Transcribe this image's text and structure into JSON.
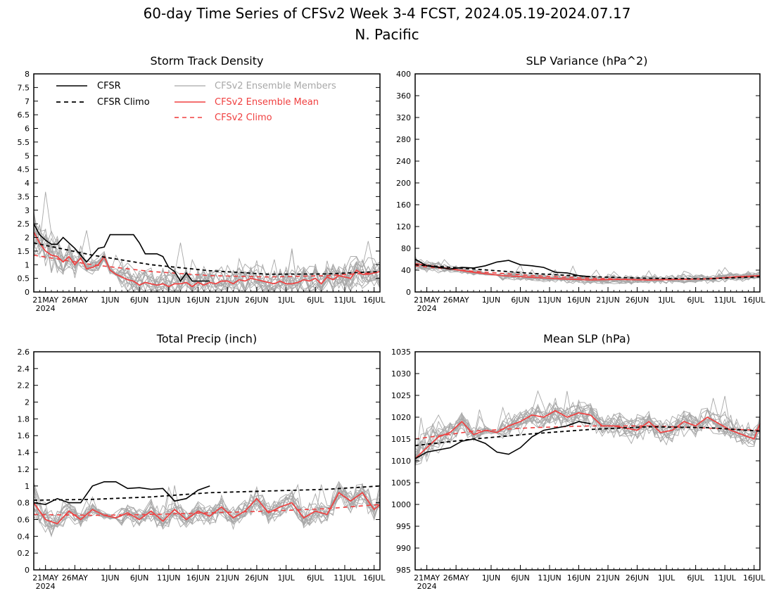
{
  "figure": {
    "title_line1": "60-day Time Series of CFSv2 Week 3-4 FCST, 2024.05.19-2024.07.17",
    "title_line2": "N. Pacific"
  },
  "legend": {
    "cfsr": "CFSR",
    "cfsr_climo": "CFSR Climo",
    "members": "CFSv2 Ensemble Members",
    "ens_mean": "CFSv2 Ensemble Mean",
    "cfsv2_climo": "CFSv2 Climo"
  },
  "colors": {
    "black": "#000000",
    "red": "#f04040",
    "gray": "#a8a8a8"
  },
  "x_axis": {
    "days": 60,
    "year_label": "2024",
    "tick_labels": [
      "21MAY",
      "26MAY",
      "1JUN",
      "6JUN",
      "11JUN",
      "16JUN",
      "21JUN",
      "26JUN",
      "1JUL",
      "6JUL",
      "11JUL",
      "16JUL"
    ],
    "tick_days": [
      2,
      7,
      13,
      18,
      23,
      28,
      33,
      38,
      43,
      48,
      53,
      58
    ]
  },
  "chart_data": [
    {
      "id": "storm",
      "type": "line",
      "title": "Storm Track Density",
      "ylim": [
        0,
        8
      ],
      "yticks": [
        "0",
        "0.5",
        "1",
        "1.5",
        "2",
        "2.5",
        "3",
        "3.5",
        "4",
        "4.5",
        "5",
        "5.5",
        "6",
        "6.5",
        "7",
        "7.5",
        "8"
      ],
      "ytick_values": [
        0,
        0.5,
        1,
        1.5,
        2,
        2.5,
        3,
        3.5,
        4,
        4.5,
        5,
        5.5,
        6,
        6.5,
        7,
        7.5,
        8
      ],
      "member_spread": 0.45,
      "member_peak": 3.8,
      "member_floor": 0.0,
      "series": [
        {
          "name": "CFSR",
          "x": [
            0,
            1,
            2,
            3,
            4,
            5,
            6,
            7,
            8,
            9,
            10,
            11,
            12,
            13,
            14,
            15,
            16,
            17,
            18,
            19,
            20,
            21,
            22,
            23,
            24,
            25,
            26,
            27,
            28,
            29,
            30
          ],
          "values": [
            2.5,
            2.1,
            1.9,
            1.75,
            1.75,
            2.0,
            1.8,
            1.6,
            1.35,
            1.1,
            1.35,
            1.6,
            1.65,
            2.1,
            2.1,
            2.1,
            2.1,
            2.1,
            1.8,
            1.4,
            1.4,
            1.4,
            1.3,
            0.9,
            0.75,
            0.4,
            0.7,
            0.4,
            0.4,
            0.4,
            0.4
          ]
        },
        {
          "name": "CFSR Climo",
          "x": [
            0,
            10,
            20,
            30,
            40,
            50,
            59
          ],
          "values": [
            1.8,
            1.35,
            1.0,
            0.78,
            0.65,
            0.66,
            0.75
          ]
        },
        {
          "name": "CFSv2 Ensemble Mean",
          "x": [
            0,
            1,
            2,
            3,
            4,
            5,
            6,
            7,
            8,
            9,
            10,
            11,
            12,
            13,
            14,
            15,
            16,
            17,
            18,
            19,
            20,
            21,
            22,
            23,
            24,
            25,
            26,
            27,
            28,
            29,
            30,
            31,
            32,
            33,
            34,
            35,
            36,
            37,
            38,
            39,
            40,
            41,
            42,
            43,
            44,
            45,
            46,
            47,
            48,
            49,
            50,
            51,
            52,
            53,
            54,
            55,
            56,
            57,
            58,
            59
          ],
          "values": [
            2.2,
            1.8,
            1.5,
            1.35,
            1.3,
            1.1,
            1.3,
            1.0,
            1.25,
            0.85,
            0.9,
            1.0,
            1.3,
            0.8,
            0.65,
            0.55,
            0.45,
            0.4,
            0.25,
            0.35,
            0.3,
            0.25,
            0.3,
            0.2,
            0.3,
            0.3,
            0.35,
            0.2,
            0.35,
            0.25,
            0.35,
            0.3,
            0.4,
            0.4,
            0.3,
            0.45,
            0.4,
            0.5,
            0.45,
            0.4,
            0.35,
            0.3,
            0.4,
            0.3,
            0.3,
            0.35,
            0.45,
            0.4,
            0.5,
            0.3,
            0.55,
            0.45,
            0.6,
            0.55,
            0.5,
            0.8,
            0.65,
            0.65,
            0.7,
            0.75
          ]
        },
        {
          "name": "CFSv2 Climo",
          "x": [
            0,
            10,
            20,
            30,
            40,
            50,
            59
          ],
          "values": [
            1.35,
            1.0,
            0.75,
            0.6,
            0.55,
            0.6,
            0.72
          ]
        }
      ]
    },
    {
      "id": "slpvar",
      "type": "line",
      "title": "SLP Variance (hPa^2)",
      "ylim": [
        0,
        400
      ],
      "yticks": [
        "0",
        "40",
        "80",
        "120",
        "160",
        "200",
        "240",
        "280",
        "320",
        "360",
        "400"
      ],
      "ytick_values": [
        0,
        40,
        80,
        120,
        160,
        200,
        240,
        280,
        320,
        360,
        400
      ],
      "member_spread": 6,
      "member_peak": 90,
      "member_floor": 5,
      "series": [
        {
          "name": "CFSR",
          "x": [
            0,
            2,
            4,
            6,
            8,
            10,
            12,
            14,
            16,
            18,
            20,
            22,
            24,
            26,
            28,
            30
          ],
          "values": [
            60,
            48,
            45,
            42,
            45,
            44,
            48,
            55,
            58,
            50,
            48,
            45,
            36,
            35,
            30,
            28
          ]
        },
        {
          "name": "CFSR Climo",
          "x": [
            0,
            10,
            20,
            30,
            40,
            50,
            59
          ],
          "values": [
            50,
            42,
            34,
            28,
            25,
            24,
            28
          ]
        },
        {
          "name": "CFSv2 Ensemble Mean",
          "x": [
            0,
            5,
            10,
            15,
            20,
            25,
            30,
            35,
            40,
            45,
            50,
            55,
            59
          ],
          "values": [
            52,
            44,
            36,
            30,
            27,
            24,
            22,
            23,
            22,
            23,
            24,
            28,
            30
          ]
        },
        {
          "name": "CFSv2 Climo",
          "x": [
            0,
            10,
            20,
            30,
            40,
            50,
            59
          ],
          "values": [
            48,
            38,
            30,
            25,
            22,
            24,
            29
          ]
        }
      ]
    },
    {
      "id": "precip",
      "type": "line",
      "title": "Total Precip (inch)",
      "ylim": [
        0,
        2.6
      ],
      "yticks": [
        "0",
        "0.2",
        "0.4",
        "0.6",
        "0.8",
        "1",
        "1.2",
        "1.4",
        "1.6",
        "1.8",
        "2",
        "2.2",
        "2.4",
        "2.6"
      ],
      "ytick_values": [
        0,
        0.2,
        0.4,
        0.6,
        0.8,
        1,
        1.2,
        1.4,
        1.6,
        1.8,
        2,
        2.2,
        2.4,
        2.6
      ],
      "member_spread": 0.1,
      "member_peak": 1.05,
      "member_floor": 0.2,
      "series": [
        {
          "name": "CFSR",
          "x": [
            0,
            2,
            4,
            6,
            8,
            10,
            12,
            14,
            16,
            18,
            20,
            22,
            24,
            26,
            28,
            30
          ],
          "values": [
            0.8,
            0.78,
            0.85,
            0.8,
            0.8,
            1.0,
            1.05,
            1.05,
            0.97,
            0.98,
            0.96,
            0.97,
            0.82,
            0.85,
            0.95,
            1.0
          ]
        },
        {
          "name": "CFSR Climo",
          "x": [
            0,
            10,
            20,
            30,
            40,
            50,
            59
          ],
          "values": [
            0.83,
            0.84,
            0.87,
            0.92,
            0.94,
            0.96,
            1.0
          ]
        },
        {
          "name": "CFSv2 Ensemble Mean",
          "x": [
            0,
            2,
            4,
            6,
            8,
            10,
            12,
            14,
            16,
            18,
            20,
            22,
            24,
            26,
            28,
            30,
            32,
            34,
            36,
            38,
            40,
            42,
            44,
            46,
            48,
            50,
            52,
            54,
            56,
            58,
            59
          ],
          "values": [
            0.8,
            0.6,
            0.55,
            0.7,
            0.6,
            0.72,
            0.65,
            0.62,
            0.68,
            0.6,
            0.7,
            0.58,
            0.72,
            0.6,
            0.7,
            0.64,
            0.75,
            0.62,
            0.7,
            0.85,
            0.68,
            0.75,
            0.8,
            0.62,
            0.7,
            0.66,
            0.92,
            0.82,
            0.92,
            0.72,
            0.78
          ]
        },
        {
          "name": "CFSv2 Climo",
          "x": [
            0,
            10,
            20,
            30,
            40,
            50,
            59
          ],
          "values": [
            0.66,
            0.65,
            0.66,
            0.68,
            0.7,
            0.73,
            0.78
          ]
        }
      ]
    },
    {
      "id": "meanslp",
      "type": "line",
      "title": "Mean SLP (hPa)",
      "ylim": [
        985,
        1035
      ],
      "yticks": [
        "985",
        "990",
        "995",
        "1000",
        "1005",
        "1010",
        "1015",
        "1020",
        "1025",
        "1030",
        "1035"
      ],
      "ytick_values": [
        985,
        990,
        995,
        1000,
        1005,
        1010,
        1015,
        1020,
        1025,
        1030,
        1035
      ],
      "member_spread": 2.2,
      "member_peak": 1026,
      "member_floor": 1009,
      "series": [
        {
          "name": "CFSR",
          "x": [
            0,
            2,
            4,
            6,
            8,
            10,
            12,
            14,
            16,
            18,
            20,
            22,
            24,
            26,
            28,
            30
          ],
          "values": [
            1010.5,
            1012,
            1012.5,
            1013,
            1014.5,
            1015,
            1014,
            1012,
            1011.5,
            1013,
            1015.5,
            1017,
            1017.5,
            1018,
            1019,
            1018.5
          ]
        },
        {
          "name": "CFSR Climo",
          "x": [
            0,
            10,
            20,
            30,
            40,
            50,
            59
          ],
          "values": [
            1013.5,
            1015,
            1016.2,
            1017.2,
            1017.8,
            1017.6,
            1016.8
          ]
        },
        {
          "name": "CFSv2 Ensemble Mean",
          "x": [
            0,
            2,
            4,
            6,
            8,
            10,
            12,
            14,
            16,
            18,
            20,
            22,
            24,
            26,
            28,
            30,
            32,
            34,
            36,
            38,
            40,
            42,
            44,
            46,
            48,
            50,
            52,
            54,
            56,
            58,
            59
          ],
          "values": [
            1010.5,
            1013,
            1015.5,
            1016.5,
            1019,
            1016,
            1017,
            1016.5,
            1018,
            1019,
            1020.5,
            1020,
            1021.5,
            1020,
            1021,
            1020.5,
            1018,
            1018,
            1017.5,
            1017,
            1019,
            1016.5,
            1017,
            1019,
            1018,
            1020,
            1018.5,
            1017,
            1016,
            1015,
            1018.5
          ]
        },
        {
          "name": "CFSv2 Climo",
          "x": [
            0,
            10,
            20,
            30,
            40,
            50,
            59
          ],
          "values": [
            1015,
            1016.8,
            1017.6,
            1018,
            1018,
            1017.5,
            1017
          ]
        }
      ]
    }
  ]
}
